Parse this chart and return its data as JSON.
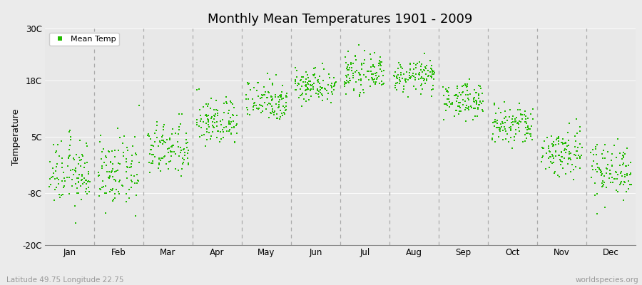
{
  "title": "Monthly Mean Temperatures 1901 - 2009",
  "ylabel": "Temperature",
  "xlabel_note": "Latitude 49.75 Longitude 22.75",
  "watermark": "worldspecies.org",
  "ytick_labels": [
    "-20C",
    "-8C",
    "5C",
    "18C",
    "30C"
  ],
  "ytick_values": [
    -20,
    -8,
    5,
    18,
    30
  ],
  "ylim": [
    -20,
    30
  ],
  "month_labels": [
    "Jan",
    "Feb",
    "Mar",
    "Apr",
    "May",
    "Jun",
    "Jul",
    "Aug",
    "Sep",
    "Oct",
    "Nov",
    "Dec"
  ],
  "month_centers": [
    0.5,
    1.5,
    2.5,
    3.5,
    4.5,
    5.5,
    6.5,
    7.5,
    8.5,
    9.5,
    10.5,
    11.5
  ],
  "dot_color": "#22bb00",
  "dot_size": 2.5,
  "background_color": "#ebebeb",
  "plot_bg_color": "#e8e8e8",
  "n_years": 109,
  "monthly_mean": [
    -3.5,
    -3.5,
    2.0,
    8.5,
    13.5,
    17.0,
    19.5,
    19.0,
    13.5,
    7.5,
    1.5,
    -2.5
  ],
  "monthly_std": [
    3.8,
    4.0,
    3.2,
    2.8,
    2.5,
    2.0,
    2.0,
    1.8,
    2.0,
    2.5,
    3.0,
    3.2
  ]
}
